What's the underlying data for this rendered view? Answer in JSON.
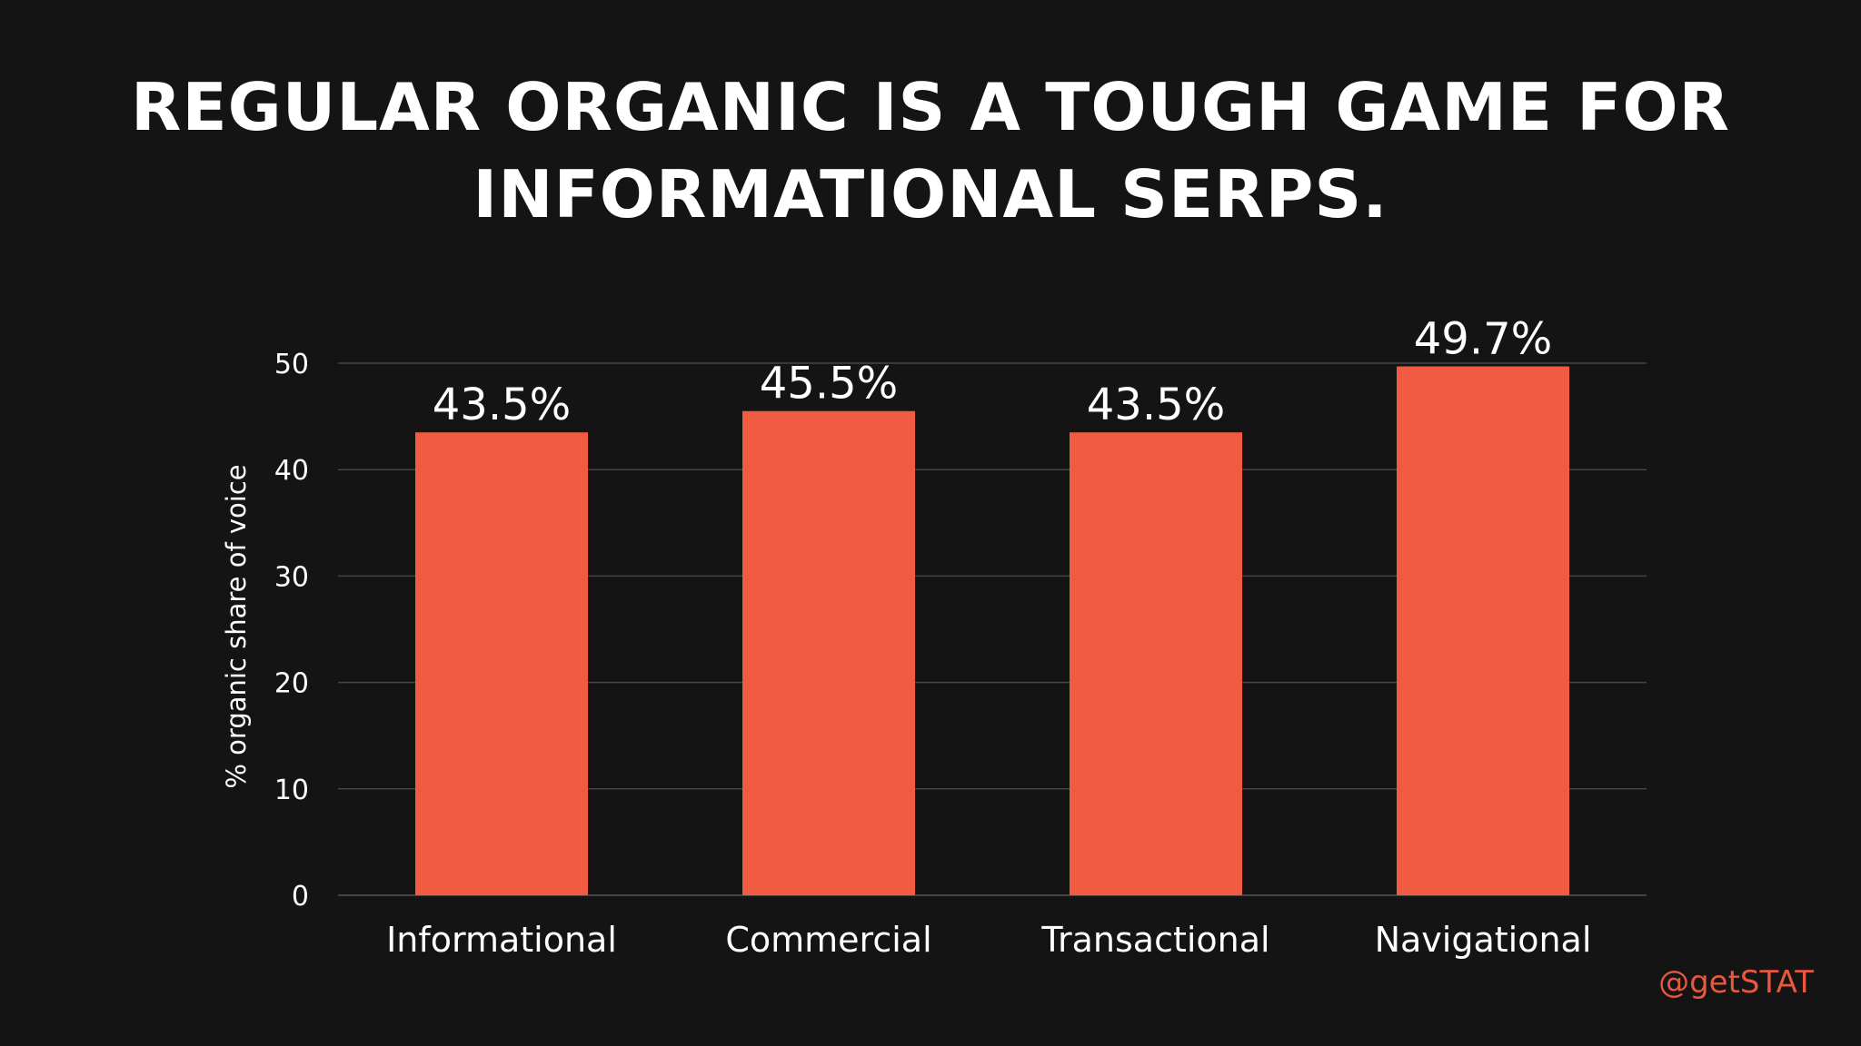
{
  "title_lines": [
    "REGULAR ORGANIC IS A TOUGH GAME FOR",
    "INFORMATIONAL SERPS."
  ],
  "handle": "@getSTAT",
  "colors": {
    "background": "#141414",
    "bar": "#f05b41",
    "grid": "#444444",
    "text": "#ffffff",
    "handle": "#e9573f"
  },
  "chart_data": {
    "type": "bar",
    "title": "REGULAR ORGANIC IS A TOUGH GAME FOR INFORMATIONAL SERPS.",
    "categories": [
      "Informational",
      "Commercial",
      "Transactional",
      "Navigational"
    ],
    "values": [
      43.5,
      45.5,
      43.5,
      49.7
    ],
    "data_labels": [
      "43.5%",
      "45.5%",
      "43.5%",
      "49.7%"
    ],
    "xlabel": "",
    "ylabel": "% organic share of voice",
    "ylim": [
      0,
      50
    ],
    "yticks": [
      0,
      10,
      20,
      30,
      40,
      50
    ],
    "grid": true,
    "legend": "none"
  }
}
